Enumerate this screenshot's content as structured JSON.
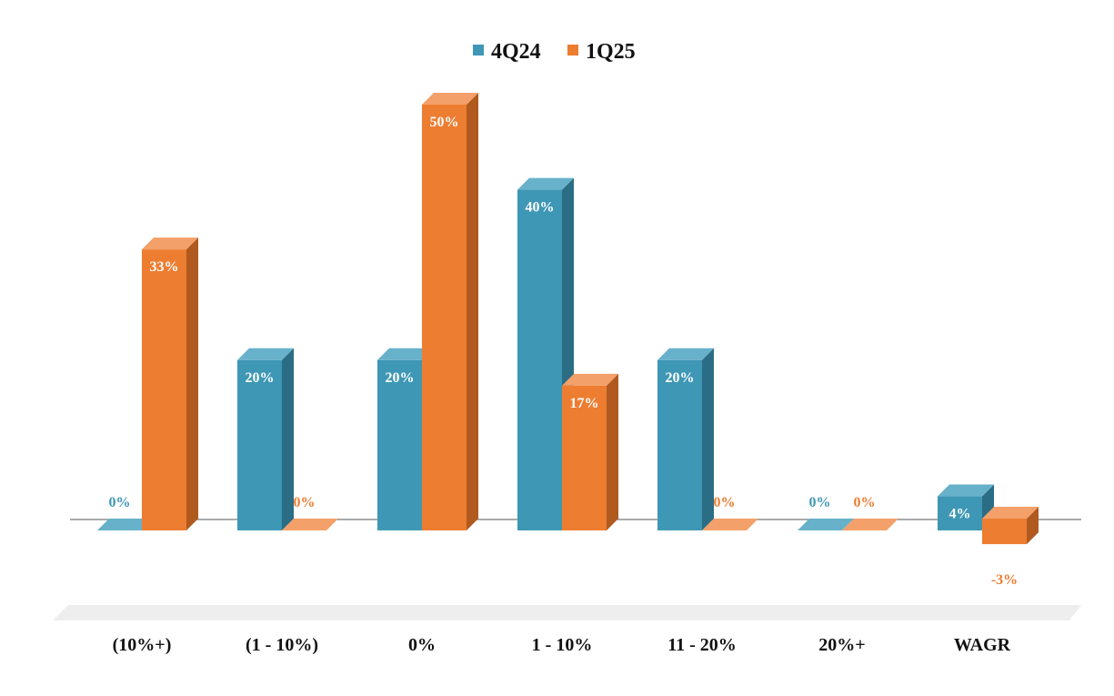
{
  "colors": {
    "series1": "#3e97b5",
    "series1_top": "#67b1ca",
    "series1_side": "#2b6d84",
    "series2": "#ed7d31",
    "series2_top": "#f3a06a",
    "series2_side": "#b05a1f",
    "floor": "#eeeeee",
    "axis": "#555555",
    "label_inside": "#ffffff",
    "text": "#111111"
  },
  "chart_data": {
    "type": "bar",
    "categories": [
      "(10%+)",
      "(1 - 10%)",
      "0%",
      "1 - 10%",
      "11 - 20%",
      "20%+",
      "WAGR"
    ],
    "series": [
      {
        "name": "4Q24",
        "values": [
          0,
          20,
          20,
          40,
          20,
          0,
          4
        ],
        "labels": [
          "0%",
          "20%",
          "20%",
          "40%",
          "20%",
          "0%",
          "4%"
        ]
      },
      {
        "name": "1Q25",
        "values": [
          33,
          0,
          50,
          17,
          0,
          0,
          -3
        ],
        "labels": [
          "33%",
          "0%",
          "50%",
          "17%",
          "0%",
          "0%",
          "-3%"
        ]
      }
    ],
    "ylim": [
      -7,
      55
    ],
    "legend_position": "top-center",
    "grid": false,
    "style": "3d-clustered-column"
  }
}
